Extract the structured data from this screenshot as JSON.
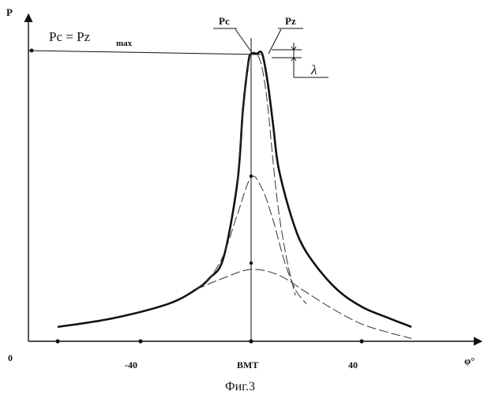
{
  "chart_data": {
    "type": "line",
    "xlabel": "φ°",
    "ylabel": "P",
    "origin_label": "0",
    "x_ticks": [
      {
        "value": -40,
        "label": "-40"
      },
      {
        "value": 0,
        "label": "ВМТ"
      },
      {
        "value": 40,
        "label": "40"
      }
    ],
    "annotations": {
      "equation_main": "Pc = Pz",
      "equation_sub": "max",
      "pc_label": "Pc",
      "pz_label": "Pz",
      "lambda_label": "λ"
    },
    "series": [
      {
        "style": "solid-bold",
        "x": [
          -70,
          -50,
          -30,
          -20,
          -15,
          -10,
          -5,
          -3,
          -1,
          0,
          2,
          4,
          6,
          8,
          10,
          15,
          20,
          30,
          40,
          50,
          58
        ],
        "y": [
          0.05,
          0.08,
          0.13,
          0.18,
          0.22,
          0.29,
          0.55,
          0.8,
          0.97,
          1.0,
          1.0,
          1.0,
          0.9,
          0.75,
          0.6,
          0.42,
          0.31,
          0.19,
          0.12,
          0.08,
          0.05
        ]
      },
      {
        "style": "dashed",
        "x": [
          -5,
          -3,
          -1,
          0,
          2,
          4,
          6,
          8,
          10,
          13,
          16
        ],
        "y": [
          0.55,
          0.8,
          0.97,
          1.0,
          1.0,
          0.95,
          0.82,
          0.62,
          0.45,
          0.28,
          0.16
        ]
      },
      {
        "style": "dashed",
        "x": [
          -20,
          -15,
          -10,
          -5,
          0,
          4,
          8,
          12,
          16,
          20
        ],
        "y": [
          0.18,
          0.22,
          0.3,
          0.44,
          0.57,
          0.53,
          0.42,
          0.28,
          0.18,
          0.13
        ]
      },
      {
        "style": "dashed",
        "x": [
          -20,
          -10,
          0,
          10,
          20,
          30,
          40,
          50,
          58
        ],
        "y": [
          0.18,
          0.22,
          0.25,
          0.23,
          0.17,
          0.11,
          0.06,
          0.03,
          0.01
        ]
      }
    ],
    "markers_x": [
      -70,
      -40,
      0,
      40
    ],
    "grid": false
  },
  "caption": "Фиг.3"
}
